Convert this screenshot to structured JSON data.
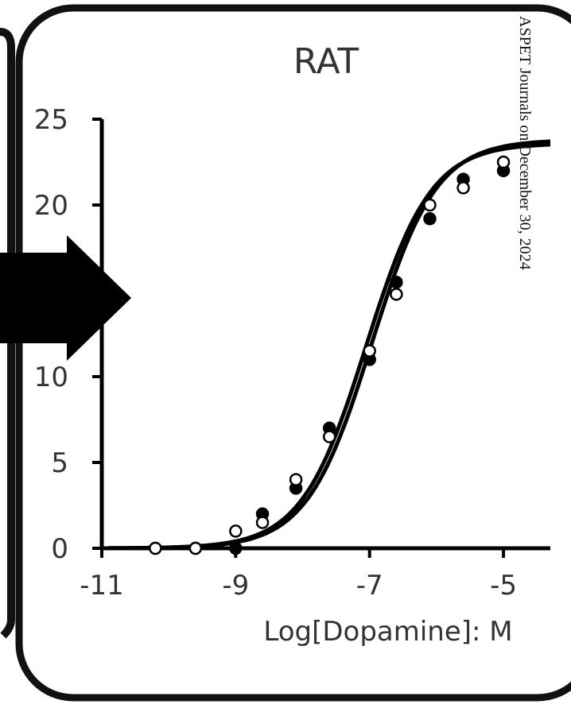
{
  "watermark": "ASPET Journals on December 30, 2024",
  "chart_data": {
    "type": "line",
    "title": "RAT",
    "xlabel": "Log[Dopamine]: M",
    "ylabel": "",
    "xlim": [
      -11,
      -4.3
    ],
    "ylim": [
      0,
      25
    ],
    "xticks": [
      -11,
      -9,
      -7,
      -5
    ],
    "xtick_labels": [
      "-11",
      "-9",
      "-7",
      "-5"
    ],
    "yticks": [
      0,
      5,
      10,
      15,
      20,
      25
    ],
    "ytick_labels": [
      "0",
      "5",
      "10",
      "",
      "20",
      "25"
    ],
    "grid": false,
    "series": [
      {
        "marker": "filled-circle",
        "color": "#111111",
        "x": [
          -10.2,
          -9.6,
          -9.0,
          -8.6,
          -8.1,
          -7.6,
          -7.0,
          -6.6,
          -6.1,
          -5.6,
          -5.0
        ],
        "y": [
          0.0,
          0.0,
          0.0,
          2.0,
          3.5,
          7.0,
          11.0,
          15.5,
          19.2,
          21.5,
          22.0
        ]
      },
      {
        "marker": "open-circle",
        "color": "#111111",
        "x": [
          -10.2,
          -9.6,
          -9.0,
          -8.6,
          -8.1,
          -7.6,
          -7.0,
          -6.6,
          -6.1,
          -5.6,
          -5.0
        ],
        "y": [
          0.0,
          0.0,
          1.0,
          1.5,
          4.0,
          6.5,
          11.5,
          14.8,
          20.0,
          21.0,
          22.5
        ]
      }
    ],
    "fit_curve": {
      "bottom": 0,
      "top": 23.8,
      "logEC50": -7.0,
      "hill": 0.9
    }
  }
}
